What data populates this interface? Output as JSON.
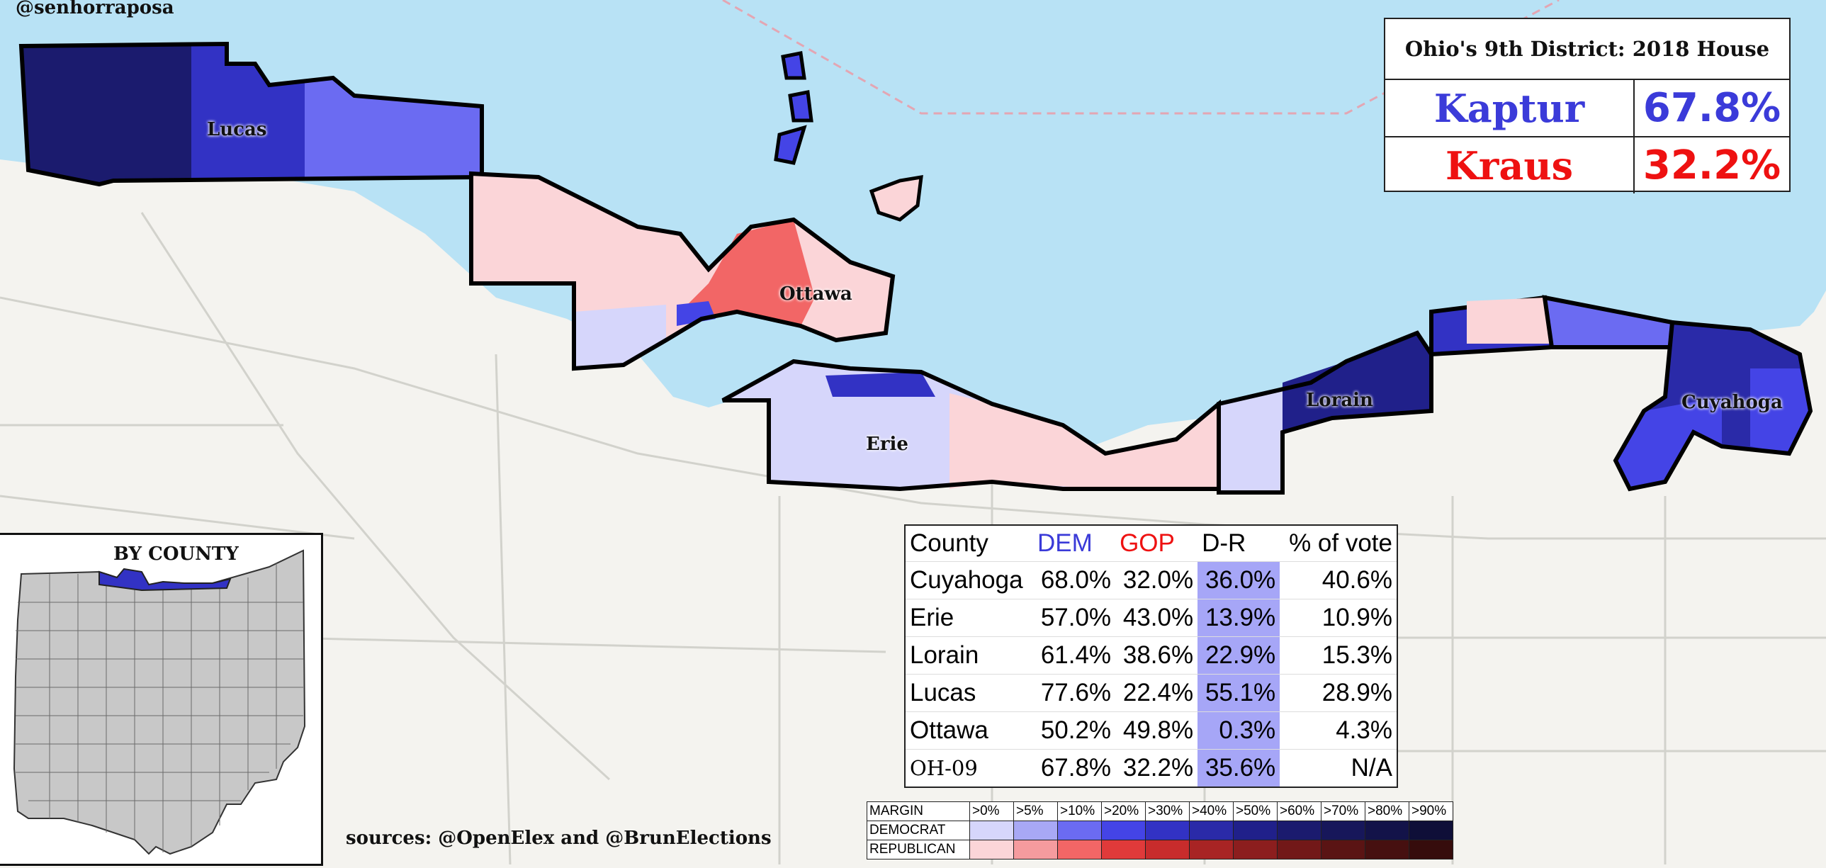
{
  "credit": "@senhorraposa",
  "results": {
    "title": "Ohio's 9th District: 2018 House",
    "candidates": [
      {
        "name": "Kaptur",
        "pct": "67.8%",
        "party": "dem"
      },
      {
        "name": "Kraus",
        "pct": "32.2%",
        "party": "gop"
      }
    ]
  },
  "county_labels": [
    "Lucas",
    "Ottawa",
    "Erie",
    "Lorain",
    "Cuyahoga"
  ],
  "table": {
    "headers": {
      "county": "County",
      "dem": "DEM",
      "gop": "GOP",
      "dr": "D-R",
      "share": "% of vote"
    },
    "rows": [
      {
        "county": "Cuyahoga",
        "dem": "68.0%",
        "gop": "32.0%",
        "dr": "36.0%",
        "share": "40.6%"
      },
      {
        "county": "Erie",
        "dem": "57.0%",
        "gop": "43.0%",
        "dr": "13.9%",
        "share": "10.9%"
      },
      {
        "county": "Lorain",
        "dem": "61.4%",
        "gop": "38.6%",
        "dr": "22.9%",
        "share": "15.3%"
      },
      {
        "county": "Lucas",
        "dem": "77.6%",
        "gop": "22.4%",
        "dr": "55.1%",
        "share": "28.9%"
      },
      {
        "county": "Ottawa",
        "dem": "50.2%",
        "gop": "49.8%",
        "dr": "0.3%",
        "share": "4.3%"
      }
    ],
    "total": {
      "county": "OH-09",
      "dem": "67.8%",
      "gop": "32.2%",
      "dr": "35.6%",
      "share": "N/A"
    }
  },
  "inset": {
    "title": "BY COUNTY"
  },
  "sources": "sources: @OpenElex and @BrunElections",
  "legend": {
    "margin_label": "MARGIN",
    "dem_label": "DEMOCRAT",
    "rep_label": "REPUBLICAN",
    "bins": [
      ">0%",
      ">5%",
      ">10%",
      ">20%",
      ">30%",
      ">40%",
      ">50%",
      ">60%",
      ">70%",
      ">80%",
      ">90%"
    ],
    "dem_colors": [
      "#d6d6fb",
      "#a8a8f5",
      "#6b6bf2",
      "#4444e6",
      "#3232c4",
      "#2a2aa8",
      "#20208a",
      "#1b1b6e",
      "#17175a",
      "#131349",
      "#0f0f38"
    ],
    "rep_colors": [
      "#fbd5d8",
      "#f59b9e",
      "#f26666",
      "#e03a3a",
      "#c82c2c",
      "#a82424",
      "#8c1e1e",
      "#721818",
      "#5a1414",
      "#461010",
      "#360c0c"
    ]
  },
  "colors": {
    "lake": "#b8e2f5",
    "land": "#f4f3ef",
    "dem": "#3b3bd9",
    "gop": "#ee1111"
  }
}
